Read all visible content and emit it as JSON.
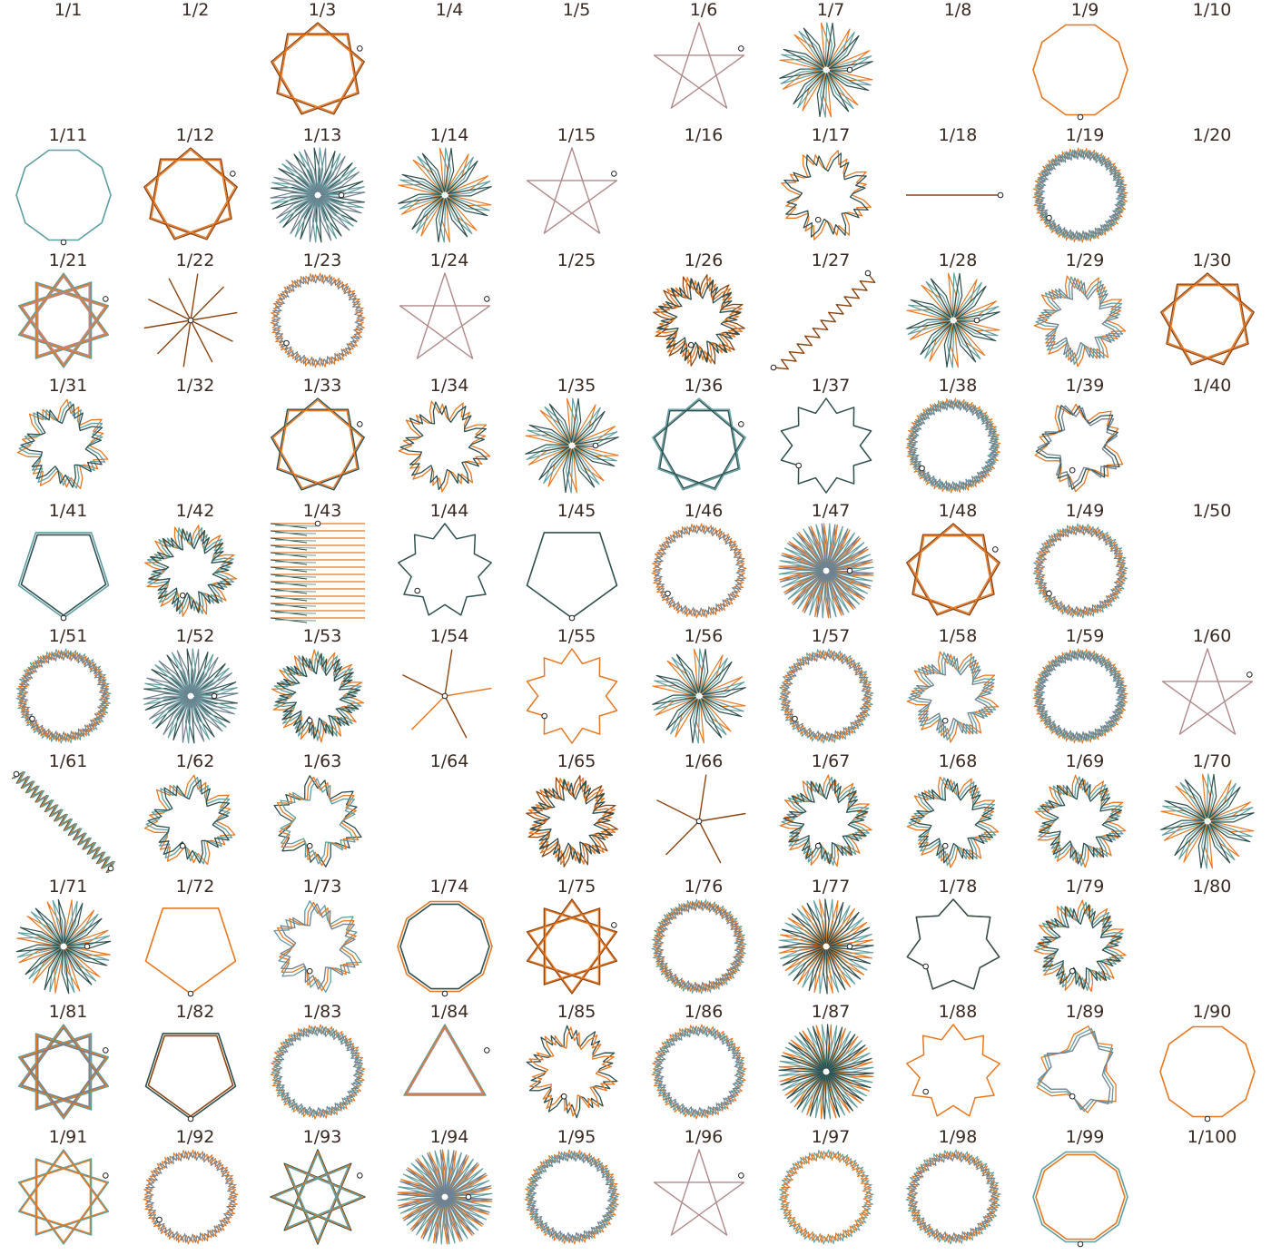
{
  "palette": [
    "#2f4f4f",
    "#e87722",
    "#5f9ea0",
    "#8b4513",
    "#b08a8a",
    "#708090"
  ],
  "cells": [
    {
      "title": "1/1",
      "shape": "empty"
    },
    {
      "title": "1/2",
      "shape": "empty"
    },
    {
      "title": "1/3",
      "shape": "star",
      "n": 9,
      "k": 2,
      "colors": [
        3,
        1
      ],
      "dot": true
    },
    {
      "title": "1/4",
      "shape": "empty"
    },
    {
      "title": "1/5",
      "shape": "empty"
    },
    {
      "title": "1/6",
      "shape": "star",
      "n": 5,
      "k": 2,
      "colors": [
        4
      ],
      "dot": true
    },
    {
      "title": "1/7",
      "shape": "spiky",
      "n": 10,
      "colors": [
        1,
        2,
        0
      ],
      "dot": true
    },
    {
      "title": "1/8",
      "shape": "empty"
    },
    {
      "title": "1/9",
      "shape": "polygon",
      "n": 10,
      "colors": [
        1
      ],
      "dot": true
    },
    {
      "title": "1/10",
      "shape": "empty"
    },
    {
      "title": "1/11",
      "shape": "polygon",
      "n": 10,
      "colors": [
        2
      ],
      "dot": true
    },
    {
      "title": "1/12",
      "shape": "star",
      "n": 9,
      "k": 2,
      "colors": [
        3,
        1
      ],
      "dot": true
    },
    {
      "title": "1/13",
      "shape": "spiky",
      "n": 14,
      "colors": [
        0,
        2,
        5
      ],
      "dot": true
    },
    {
      "title": "1/14",
      "shape": "spiky",
      "n": 10,
      "colors": [
        1,
        2,
        0
      ],
      "dot": false
    },
    {
      "title": "1/15",
      "shape": "star",
      "n": 5,
      "k": 2,
      "colors": [
        4
      ],
      "dot": true
    },
    {
      "title": "1/16",
      "shape": "empty"
    },
    {
      "title": "1/17",
      "shape": "jagged",
      "n": 8,
      "colors": [
        1,
        0
      ],
      "dot": true
    },
    {
      "title": "1/18",
      "shape": "line",
      "colors": [
        3
      ],
      "dot": true
    },
    {
      "title": "1/19",
      "shape": "ring",
      "n": 36,
      "colors": [
        1,
        2,
        5
      ],
      "dot": true
    },
    {
      "title": "1/20",
      "shape": "empty"
    },
    {
      "title": "1/21",
      "shape": "star",
      "n": 10,
      "k": 3,
      "colors": [
        2,
        1,
        4
      ],
      "dot": true
    },
    {
      "title": "1/22",
      "shape": "rays",
      "n": 10,
      "colors": [
        3
      ],
      "dot": true
    },
    {
      "title": "1/23",
      "shape": "ring",
      "n": 30,
      "colors": [
        1,
        5
      ],
      "dot": true
    },
    {
      "title": "1/24",
      "shape": "star",
      "n": 5,
      "k": 2,
      "colors": [
        4
      ],
      "dot": true
    },
    {
      "title": "1/25",
      "shape": "empty"
    },
    {
      "title": "1/26",
      "shape": "jagged",
      "n": 12,
      "colors": [
        3,
        1,
        0
      ],
      "dot": true
    },
    {
      "title": "1/27",
      "shape": "zigzag",
      "colors": [
        3
      ],
      "dot": true
    },
    {
      "title": "1/28",
      "shape": "spiky",
      "n": 10,
      "colors": [
        1,
        2,
        0
      ],
      "dot": true
    },
    {
      "title": "1/29",
      "shape": "jagged",
      "n": 9,
      "colors": [
        1,
        2,
        5
      ],
      "dot": false
    },
    {
      "title": "1/30",
      "shape": "star",
      "n": 9,
      "k": 2,
      "colors": [
        3,
        1
      ],
      "dot": false
    },
    {
      "title": "1/31",
      "shape": "jagged",
      "n": 7,
      "colors": [
        1,
        2,
        0
      ],
      "dot": false
    },
    {
      "title": "1/32",
      "shape": "empty"
    },
    {
      "title": "1/33",
      "shape": "star",
      "n": 9,
      "k": 2,
      "colors": [
        0,
        1
      ],
      "dot": true
    },
    {
      "title": "1/34",
      "shape": "jagged",
      "n": 9,
      "colors": [
        1,
        0
      ],
      "dot": false
    },
    {
      "title": "1/35",
      "shape": "spiky",
      "n": 10,
      "colors": [
        1,
        2,
        0
      ],
      "dot": true
    },
    {
      "title": "1/36",
      "shape": "star",
      "n": 9,
      "k": 2,
      "colors": [
        2,
        0
      ],
      "dot": true
    },
    {
      "title": "1/37",
      "shape": "starpoly",
      "n": 10,
      "colors": [
        0
      ],
      "dot": true
    },
    {
      "title": "1/38",
      "shape": "ring",
      "n": 34,
      "colors": [
        1,
        2,
        5
      ],
      "dot": true
    },
    {
      "title": "1/39",
      "shape": "jagged",
      "n": 5,
      "colors": [
        1,
        0,
        5
      ],
      "dot": true
    },
    {
      "title": "1/40",
      "shape": "empty"
    },
    {
      "title": "1/41",
      "shape": "polygon",
      "n": 5,
      "colors": [
        2,
        0
      ],
      "dot": true
    },
    {
      "title": "1/42",
      "shape": "jagged",
      "n": 12,
      "colors": [
        1,
        2,
        0
      ],
      "dot": true
    },
    {
      "title": "1/43",
      "shape": "hatch",
      "colors": [
        1,
        0,
        2
      ],
      "dot": true
    },
    {
      "title": "1/44",
      "shape": "starpoly",
      "n": 9,
      "colors": [
        0
      ],
      "dot": true
    },
    {
      "title": "1/45",
      "shape": "polygon",
      "n": 5,
      "colors": [
        0
      ],
      "dot": true
    },
    {
      "title": "1/46",
      "shape": "ring",
      "n": 30,
      "colors": [
        1,
        5
      ],
      "dot": true
    },
    {
      "title": "1/47",
      "shape": "spiky",
      "n": 22,
      "colors": [
        1,
        2,
        5
      ],
      "dot": true
    },
    {
      "title": "1/48",
      "shape": "star",
      "n": 9,
      "k": 2,
      "colors": [
        3,
        1
      ],
      "dot": true
    },
    {
      "title": "1/49",
      "shape": "ring",
      "n": 28,
      "colors": [
        2,
        1,
        5
      ],
      "dot": true
    },
    {
      "title": "1/50",
      "shape": "empty"
    },
    {
      "title": "1/51",
      "shape": "ring",
      "n": 30,
      "colors": [
        2,
        1,
        5
      ],
      "dot": true
    },
    {
      "title": "1/52",
      "shape": "spiky",
      "n": 14,
      "colors": [
        0,
        2,
        5
      ],
      "dot": true
    },
    {
      "title": "1/53",
      "shape": "jagged",
      "n": 14,
      "colors": [
        1,
        2,
        0
      ],
      "dot": true
    },
    {
      "title": "1/54",
      "shape": "rays",
      "n": 5,
      "colors": [
        3,
        1
      ],
      "dot": true
    },
    {
      "title": "1/55",
      "shape": "starpoly",
      "n": 10,
      "colors": [
        1
      ],
      "dot": true
    },
    {
      "title": "1/56",
      "shape": "spiky",
      "n": 10,
      "colors": [
        1,
        2,
        0
      ],
      "dot": false
    },
    {
      "title": "1/57",
      "shape": "ring",
      "n": 26,
      "colors": [
        2,
        1,
        5
      ],
      "dot": true
    },
    {
      "title": "1/58",
      "shape": "jagged",
      "n": 9,
      "colors": [
        1,
        2,
        5
      ],
      "dot": true
    },
    {
      "title": "1/59",
      "shape": "ring",
      "n": 36,
      "colors": [
        1,
        2,
        5
      ],
      "dot": false
    },
    {
      "title": "1/60",
      "shape": "star",
      "n": 5,
      "k": 2,
      "colors": [
        4
      ],
      "dot": true
    },
    {
      "title": "1/61",
      "shape": "diag",
      "colors": [
        0,
        1,
        2
      ],
      "dot": true
    },
    {
      "title": "1/62",
      "shape": "jagged",
      "n": 7,
      "colors": [
        1,
        2,
        0
      ],
      "dot": true
    },
    {
      "title": "1/63",
      "shape": "jagged",
      "n": 6,
      "colors": [
        0,
        1,
        2
      ],
      "dot": true
    },
    {
      "title": "1/64",
      "shape": "empty"
    },
    {
      "title": "1/65",
      "shape": "jagged",
      "n": 12,
      "colors": [
        3,
        1,
        0
      ],
      "dot": false
    },
    {
      "title": "1/66",
      "shape": "rays",
      "n": 5,
      "colors": [
        3
      ],
      "dot": true
    },
    {
      "title": "1/67",
      "shape": "jagged",
      "n": 11,
      "colors": [
        1,
        2,
        0
      ],
      "dot": true
    },
    {
      "title": "1/68",
      "shape": "jagged",
      "n": 9,
      "colors": [
        1,
        2,
        0
      ],
      "dot": true
    },
    {
      "title": "1/69",
      "shape": "jagged",
      "n": 10,
      "colors": [
        1,
        2,
        0
      ],
      "dot": false
    },
    {
      "title": "1/70",
      "shape": "spiky",
      "n": 10,
      "colors": [
        1,
        2,
        0
      ],
      "dot": false
    },
    {
      "title": "1/71",
      "shape": "spiky",
      "n": 12,
      "colors": [
        1,
        2,
        0
      ],
      "dot": true
    },
    {
      "title": "1/72",
      "shape": "polygon",
      "n": 5,
      "colors": [
        1
      ],
      "dot": true
    },
    {
      "title": "1/73",
      "shape": "jagged",
      "n": 6,
      "colors": [
        2,
        1,
        5
      ],
      "dot": true
    },
    {
      "title": "1/74",
      "shape": "polygon",
      "n": 10,
      "colors": [
        1,
        0
      ],
      "dot": true
    },
    {
      "title": "1/75",
      "shape": "star",
      "n": 10,
      "k": 3,
      "colors": [
        3,
        1
      ],
      "dot": true
    },
    {
      "title": "1/76",
      "shape": "ring",
      "n": 32,
      "colors": [
        2,
        1,
        5
      ],
      "dot": false
    },
    {
      "title": "1/77",
      "shape": "spiky",
      "n": 16,
      "colors": [
        2,
        1,
        0
      ],
      "dot": true
    },
    {
      "title": "1/78",
      "shape": "starpoly",
      "n": 7,
      "colors": [
        1,
        0
      ],
      "dot": true
    },
    {
      "title": "1/79",
      "shape": "jagged",
      "n": 11,
      "colors": [
        1,
        2,
        0
      ],
      "dot": true
    },
    {
      "title": "1/80",
      "shape": "empty"
    },
    {
      "title": "1/81",
      "shape": "star",
      "n": 10,
      "k": 3,
      "colors": [
        2,
        1,
        5
      ],
      "dot": true
    },
    {
      "title": "1/82",
      "shape": "polygon",
      "n": 5,
      "colors": [
        0,
        3
      ],
      "dot": true
    },
    {
      "title": "1/83",
      "shape": "ring",
      "n": 26,
      "colors": [
        1,
        2,
        5
      ],
      "dot": false
    },
    {
      "title": "1/84",
      "shape": "star",
      "n": 12,
      "k": 4,
      "colors": [
        2,
        1,
        4
      ],
      "dot": true
    },
    {
      "title": "1/85",
      "shape": "jagged",
      "n": 10,
      "colors": [
        0,
        1
      ],
      "dot": true
    },
    {
      "title": "1/86",
      "shape": "ring",
      "n": 26,
      "colors": [
        1,
        2,
        5
      ],
      "dot": false
    },
    {
      "title": "1/87",
      "shape": "spiky",
      "n": 20,
      "colors": [
        1,
        2,
        0
      ],
      "dot": false
    },
    {
      "title": "1/88",
      "shape": "starpoly",
      "n": 9,
      "colors": [
        1
      ],
      "dot": true
    },
    {
      "title": "1/89",
      "shape": "jagged",
      "n": 3,
      "colors": [
        1,
        2,
        5
      ],
      "dot": true
    },
    {
      "title": "1/90",
      "shape": "polygon",
      "n": 10,
      "colors": [
        1
      ],
      "dot": true
    },
    {
      "title": "1/91",
      "shape": "star",
      "n": 10,
      "k": 3,
      "colors": [
        2,
        1
      ],
      "dot": true
    },
    {
      "title": "1/92",
      "shape": "ring",
      "n": 30,
      "colors": [
        1,
        5
      ],
      "dot": true
    },
    {
      "title": "1/93",
      "shape": "star",
      "n": 8,
      "k": 3,
      "colors": [
        0,
        1,
        2
      ],
      "dot": true
    },
    {
      "title": "1/94",
      "shape": "spiky",
      "n": 22,
      "colors": [
        1,
        2,
        5
      ],
      "dot": true
    },
    {
      "title": "1/95",
      "shape": "ring",
      "n": 28,
      "colors": [
        1,
        2,
        5
      ],
      "dot": false
    },
    {
      "title": "1/96",
      "shape": "star",
      "n": 5,
      "k": 2,
      "colors": [
        4
      ],
      "dot": true
    },
    {
      "title": "1/97",
      "shape": "ring",
      "n": 30,
      "colors": [
        2,
        1
      ],
      "dot": false
    },
    {
      "title": "1/98",
      "shape": "ring",
      "n": 26,
      "colors": [
        2,
        1,
        5
      ],
      "dot": false
    },
    {
      "title": "1/99",
      "shape": "polygon",
      "n": 10,
      "colors": [
        2,
        1
      ],
      "dot": true
    },
    {
      "title": "1/100",
      "shape": "empty"
    }
  ]
}
